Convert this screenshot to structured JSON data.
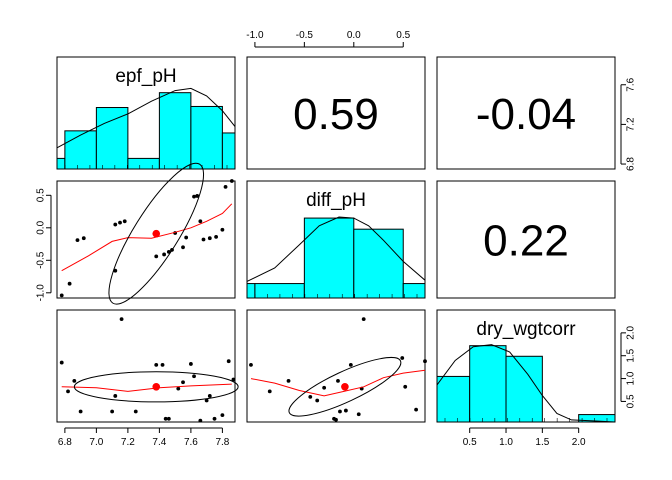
{
  "chart_data": {
    "type": "pairs",
    "variables": [
      "epf_pH",
      "diff_pH",
      "dry_wgtcorr"
    ],
    "colors": {
      "hist_fill": "#00FFFF",
      "points": "#000000",
      "loess": "#FF0000",
      "center": "#FF0000",
      "ellipse": "#000000"
    },
    "correlations": [
      {
        "pair": "epf_pH-diff_pH",
        "label": "0.59"
      },
      {
        "pair": "epf_pH-dry_wgtcorr",
        "label": "-0.04"
      },
      {
        "pair": "diff_pH-dry_wgtcorr",
        "label": "0.22"
      }
    ],
    "ranges": {
      "epf_pH": [
        6.75,
        7.88
      ],
      "diff_pH": [
        -1.08,
        0.72
      ],
      "dry_wgtcorr": [
        0.05,
        2.5
      ]
    },
    "axes": {
      "epf_pH": {
        "ticks": [
          6.8,
          7.0,
          7.2,
          7.4,
          7.6,
          7.8
        ],
        "labels": [
          "6.8",
          "7.0",
          "7.2",
          "7.4",
          "7.6",
          "7.8"
        ]
      },
      "diff_pH": {
        "ticks": [
          -1.0,
          -0.5,
          0.0,
          0.5
        ],
        "labels": [
          "-1.0",
          "-0.5",
          "0.0",
          "0.5"
        ]
      },
      "dry_wgtcorr": {
        "ticks": [
          0.5,
          1.0,
          1.5,
          2.0
        ],
        "labels": [
          "0.5",
          "1.0",
          "1.5",
          "2.0"
        ]
      },
      "epf_pH_right": {
        "ticks": [
          6.8,
          7.2,
          7.6
        ],
        "labels": [
          "6.8",
          "7.2",
          "7.6"
        ]
      }
    },
    "histograms": {
      "epf_pH": {
        "bins": [
          [
            6.75,
            6.8,
            0.1
          ],
          [
            6.8,
            7.0,
            0.36
          ],
          [
            7.0,
            7.2,
            0.58
          ],
          [
            7.2,
            7.4,
            0.1
          ],
          [
            7.4,
            7.6,
            0.72
          ],
          [
            7.6,
            7.8,
            0.59
          ],
          [
            7.8,
            7.88,
            0.34
          ]
        ],
        "density": [
          [
            6.75,
            0.2
          ],
          [
            6.9,
            0.32
          ],
          [
            7.05,
            0.43
          ],
          [
            7.2,
            0.52
          ],
          [
            7.35,
            0.64
          ],
          [
            7.5,
            0.74
          ],
          [
            7.6,
            0.76
          ],
          [
            7.7,
            0.69
          ],
          [
            7.8,
            0.55
          ],
          [
            7.88,
            0.4
          ]
        ]
      },
      "diff_pH": {
        "bins": [
          [
            -1.08,
            -1.0,
            0.13
          ],
          [
            -1.0,
            -0.5,
            0.13
          ],
          [
            -0.5,
            0.0,
            0.72
          ],
          [
            0.0,
            0.5,
            0.62
          ],
          [
            0.5,
            0.72,
            0.13
          ]
        ],
        "density": [
          [
            -1.08,
            0.15
          ],
          [
            -0.8,
            0.27
          ],
          [
            -0.55,
            0.48
          ],
          [
            -0.35,
            0.65
          ],
          [
            -0.15,
            0.73
          ],
          [
            0.0,
            0.72
          ],
          [
            0.15,
            0.65
          ],
          [
            0.3,
            0.52
          ],
          [
            0.5,
            0.33
          ],
          [
            0.72,
            0.16
          ]
        ]
      },
      "dry_wgtcorr": {
        "bins": [
          [
            0.05,
            0.5,
            0.43
          ],
          [
            0.5,
            1.0,
            0.72
          ],
          [
            1.0,
            1.5,
            0.62
          ],
          [
            1.5,
            2.0,
            0.0
          ],
          [
            2.0,
            2.5,
            0.07
          ]
        ],
        "density": [
          [
            0.05,
            0.35
          ],
          [
            0.3,
            0.58
          ],
          [
            0.55,
            0.71
          ],
          [
            0.8,
            0.73
          ],
          [
            1.05,
            0.66
          ],
          [
            1.3,
            0.45
          ],
          [
            1.5,
            0.25
          ],
          [
            1.7,
            0.08
          ],
          [
            1.9,
            0.02
          ],
          [
            2.2,
            0.01
          ],
          [
            2.5,
            0.0
          ]
        ]
      }
    },
    "scatter": [
      {
        "x": "epf_pH",
        "y": "diff_pH",
        "points": [
          [
            6.78,
            -1.04
          ],
          [
            6.83,
            -0.86
          ],
          [
            6.88,
            -0.19
          ],
          [
            6.92,
            -0.16
          ],
          [
            7.12,
            -0.66
          ],
          [
            7.12,
            0.05
          ],
          [
            7.15,
            0.08
          ],
          [
            7.18,
            0.1
          ],
          [
            7.38,
            -0.44
          ],
          [
            7.43,
            -0.41
          ],
          [
            7.46,
            -0.37
          ],
          [
            7.48,
            -0.34
          ],
          [
            7.5,
            -0.08
          ],
          [
            7.55,
            -0.3
          ],
          [
            7.57,
            -0.15
          ],
          [
            7.62,
            0.48
          ],
          [
            7.64,
            0.49
          ],
          [
            7.66,
            0.1
          ],
          [
            7.68,
            -0.18
          ],
          [
            7.72,
            -0.16
          ],
          [
            7.76,
            -0.14
          ],
          [
            7.8,
            -0.03
          ],
          [
            7.82,
            0.63
          ],
          [
            7.86,
            0.72
          ]
        ],
        "center": [
          7.38,
          -0.09
        ],
        "ellipse": {
          "rx": 0.52,
          "ry": 0.62,
          "angle_deg": 58
        },
        "loess": [
          [
            6.78,
            -0.66
          ],
          [
            6.95,
            -0.43
          ],
          [
            7.1,
            -0.21
          ],
          [
            7.2,
            -0.15
          ],
          [
            7.35,
            -0.16
          ],
          [
            7.5,
            -0.07
          ],
          [
            7.6,
            0.0
          ],
          [
            7.7,
            0.1
          ],
          [
            7.8,
            0.22
          ],
          [
            7.86,
            0.37
          ]
        ]
      },
      {
        "x": "epf_pH",
        "y": "dry_wgtcorr",
        "points": [
          [
            6.78,
            1.35
          ],
          [
            6.82,
            0.72
          ],
          [
            6.86,
            0.95
          ],
          [
            6.9,
            0.28
          ],
          [
            7.1,
            0.28
          ],
          [
            7.12,
            0.62
          ],
          [
            7.16,
            2.3
          ],
          [
            7.25,
            0.28
          ],
          [
            7.38,
            1.3
          ],
          [
            7.42,
            1.3
          ],
          [
            7.44,
            0.12
          ],
          [
            7.46,
            0.12
          ],
          [
            7.52,
            0.78
          ],
          [
            7.55,
            0.92
          ],
          [
            7.6,
            1.32
          ],
          [
            7.62,
            1.05
          ],
          [
            7.66,
            0.08
          ],
          [
            7.7,
            0.52
          ],
          [
            7.72,
            0.62
          ],
          [
            7.75,
            0.12
          ],
          [
            7.8,
            0.2
          ],
          [
            7.84,
            1.38
          ],
          [
            7.87,
            0.98
          ]
        ],
        "center": [
          7.38,
          0.82
        ],
        "ellipse": {
          "rx": 0.52,
          "ry": 0.6,
          "angle_deg": 0
        },
        "loess": [
          [
            6.78,
            0.82
          ],
          [
            7.0,
            0.8
          ],
          [
            7.2,
            0.72
          ],
          [
            7.4,
            0.8
          ],
          [
            7.6,
            0.84
          ],
          [
            7.86,
            0.88
          ]
        ]
      },
      {
        "x": "diff_pH",
        "y": "dry_wgtcorr",
        "points": [
          [
            -1.04,
            1.3
          ],
          [
            -0.85,
            0.72
          ],
          [
            -0.66,
            0.95
          ],
          [
            -0.44,
            0.6
          ],
          [
            -0.37,
            0.52
          ],
          [
            -0.3,
            0.8
          ],
          [
            -0.2,
            0.12
          ],
          [
            -0.18,
            0.1
          ],
          [
            -0.16,
            0.95
          ],
          [
            -0.14,
            0.28
          ],
          [
            -0.08,
            0.3
          ],
          [
            -0.03,
            1.3
          ],
          [
            0.05,
            0.22
          ],
          [
            0.08,
            0.78
          ],
          [
            0.1,
            2.3
          ],
          [
            0.49,
            1.45
          ],
          [
            0.52,
            0.82
          ],
          [
            0.63,
            0.32
          ],
          [
            0.72,
            1.38
          ]
        ],
        "center": [
          -0.09,
          0.82
        ],
        "ellipse": {
          "rx": 0.62,
          "ry": 0.6,
          "angle_deg": 25
        },
        "loess": [
          [
            -1.04,
            1.0
          ],
          [
            -0.8,
            0.9
          ],
          [
            -0.55,
            0.74
          ],
          [
            -0.3,
            0.62
          ],
          [
            -0.1,
            0.72
          ],
          [
            0.1,
            0.82
          ],
          [
            0.3,
            1.02
          ],
          [
            0.5,
            1.12
          ],
          [
            0.72,
            1.18
          ]
        ]
      }
    ]
  }
}
